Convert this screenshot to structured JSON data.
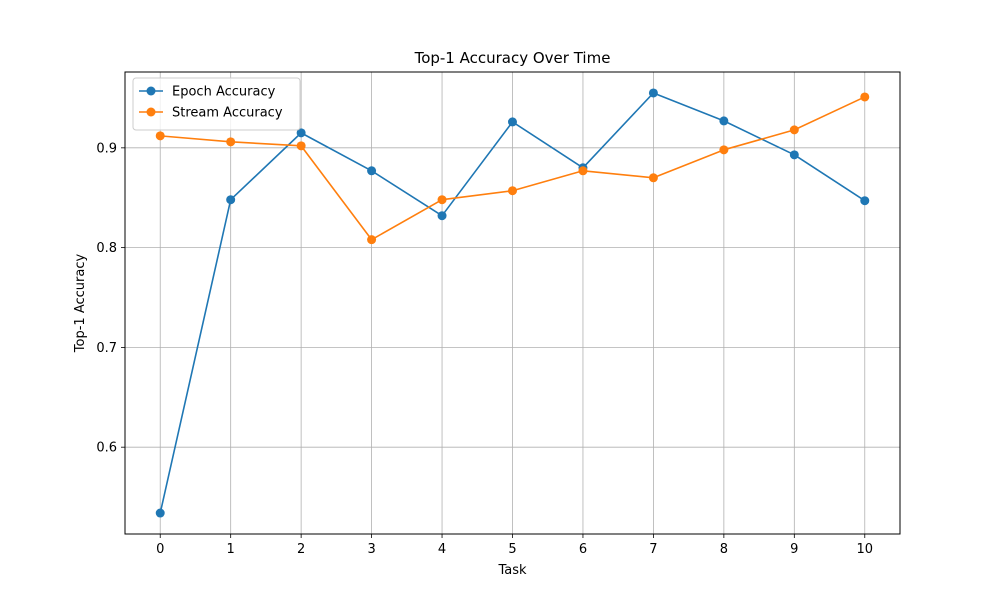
{
  "chart_data": {
    "type": "line",
    "title": "Top-1 Accuracy Over Time",
    "xlabel": "Task",
    "ylabel": "Top-1 Accuracy",
    "x": [
      0,
      1,
      2,
      3,
      4,
      5,
      6,
      7,
      8,
      9,
      10
    ],
    "xticks": [
      "0",
      "1",
      "2",
      "3",
      "4",
      "5",
      "6",
      "7",
      "8",
      "9",
      "10"
    ],
    "xlim": [
      -0.5,
      10.5
    ],
    "ylim": [
      0.513,
      0.976
    ],
    "yticks": [
      "0.6",
      "0.7",
      "0.8",
      "0.9"
    ],
    "ytick_values": [
      0.6,
      0.7,
      0.8,
      0.9
    ],
    "grid": true,
    "legend_position": "top-left",
    "series": [
      {
        "name": "Epoch Accuracy",
        "color": "#1f77b4",
        "values": [
          0.534,
          0.848,
          0.915,
          0.877,
          0.832,
          0.926,
          0.88,
          0.955,
          0.927,
          0.893,
          0.847
        ]
      },
      {
        "name": "Stream Accuracy",
        "color": "#ff7f0e",
        "values": [
          0.912,
          0.906,
          0.902,
          0.808,
          0.848,
          0.857,
          0.877,
          0.87,
          0.898,
          0.918,
          0.951
        ]
      }
    ]
  }
}
